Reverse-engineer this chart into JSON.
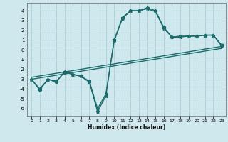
{
  "xlabel": "Humidex (Indice chaleur)",
  "xlim": [
    -0.5,
    23.5
  ],
  "ylim": [
    -6.8,
    4.8
  ],
  "yticks": [
    -6,
    -5,
    -4,
    -3,
    -2,
    -1,
    0,
    1,
    2,
    3,
    4
  ],
  "xticks": [
    0,
    1,
    2,
    3,
    4,
    5,
    6,
    7,
    8,
    9,
    10,
    11,
    12,
    13,
    14,
    15,
    16,
    17,
    18,
    19,
    20,
    21,
    22,
    23
  ],
  "bg_color": "#cfe8ed",
  "grid_color": "#a8c8d0",
  "line_color": "#1a6b6b",
  "line_width": 1.0,
  "marker": "*",
  "marker_size": 3.5,
  "series": [
    {
      "x": [
        0,
        1,
        2,
        3,
        4,
        5,
        6,
        7,
        8,
        9,
        10,
        11,
        12,
        13,
        14,
        15,
        16,
        17,
        18,
        19,
        20,
        21,
        22,
        23
      ],
      "y": [
        -3,
        -4.1,
        -3.0,
        -3.3,
        -2.2,
        -2.5,
        -2.7,
        -3.3,
        -6.3,
        -4.7,
        1.0,
        3.3,
        4.0,
        4.0,
        4.3,
        4.0,
        2.3,
        1.3,
        1.4,
        1.4,
        1.4,
        1.5,
        1.5,
        0.5
      ]
    },
    {
      "x": [
        0,
        1,
        2,
        3,
        4,
        5,
        6,
        7,
        8,
        9,
        10,
        11,
        12,
        13,
        14,
        15,
        16,
        17,
        18,
        19,
        20,
        21,
        22,
        23
      ],
      "y": [
        -3,
        -4.0,
        -3.0,
        -3.2,
        -2.3,
        -2.5,
        -2.7,
        -3.2,
        -6.0,
        -4.5,
        0.9,
        3.2,
        4.0,
        4.0,
        4.2,
        3.9,
        2.2,
        1.3,
        1.3,
        1.4,
        1.4,
        1.5,
        1.5,
        0.4
      ]
    },
    {
      "x": [
        0,
        23
      ],
      "y": [
        -3.0,
        0.15
      ],
      "no_marker": true
    },
    {
      "x": [
        0,
        23
      ],
      "y": [
        -2.8,
        0.35
      ],
      "no_marker": true
    }
  ]
}
